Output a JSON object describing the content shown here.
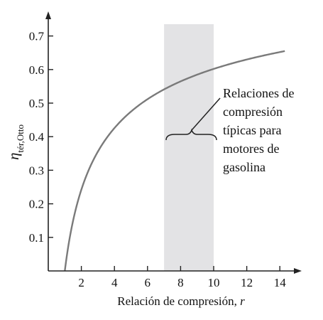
{
  "chart_data": {
    "type": "line",
    "title": "",
    "xlabel": "Relación de compresión, ",
    "xlabel_var": "r",
    "ylabel_main": "η",
    "ylabel_sub": "tér,Otto",
    "xlim": [
      0,
      14.6
    ],
    "ylim": [
      0,
      0.75
    ],
    "x_ticks": [
      2,
      4,
      6,
      8,
      10,
      12,
      14
    ],
    "y_ticks": [
      0.1,
      0.2,
      0.3,
      0.4,
      0.5,
      0.6,
      0.7
    ],
    "grid": false,
    "gamma": 1.4,
    "x_start": 1,
    "x_end": 14.3,
    "highlight_band": {
      "x_from": 7,
      "x_to": 10,
      "color": "#e3e3e5"
    },
    "curve_color": "#7a7a7a",
    "annotation_lines": [
      "Relaciones de",
      "compresión",
      "típicas para",
      "motores de",
      "gasolina"
    ]
  }
}
